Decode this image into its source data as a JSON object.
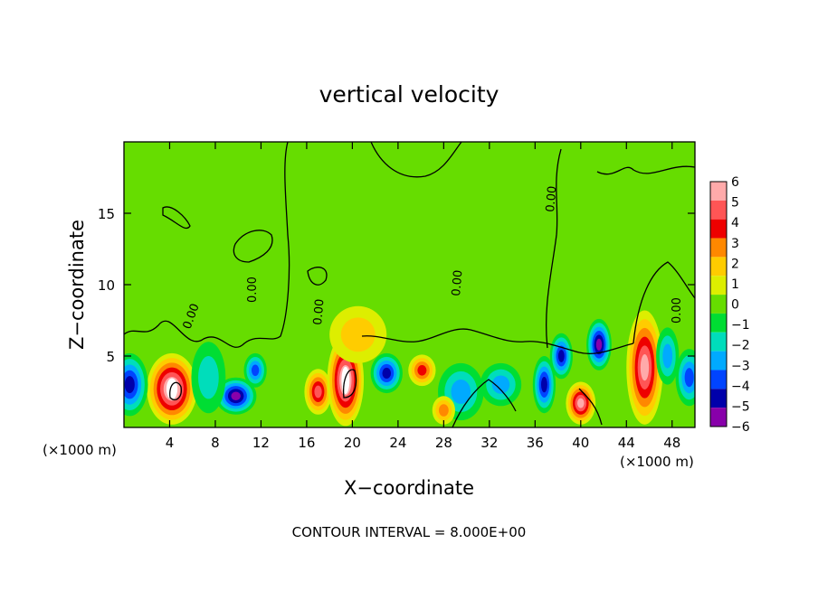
{
  "chart_data": {
    "type": "heatmap",
    "title": "vertical velocity",
    "xlabel": "X−coordinate",
    "ylabel": "Z−coordinate",
    "x_unit_left": "(×1000 m)",
    "x_unit_right": "(×1000 m)",
    "xlim": [
      0,
      50
    ],
    "ylim": [
      0,
      20
    ],
    "x_ticks": [
      4,
      8,
      12,
      16,
      20,
      24,
      28,
      32,
      36,
      40,
      44,
      48
    ],
    "y_ticks": [
      5,
      10,
      15
    ],
    "footer": "CONTOUR INTERVAL = 8.000E+00",
    "contour_label": "0.00",
    "colorbar": {
      "ticks": [
        6,
        5,
        4,
        3,
        2,
        1,
        0,
        -1,
        -2,
        -3,
        -4,
        -5,
        -6
      ],
      "colors": [
        "#ffaaaa",
        "#ff5555",
        "#ee0000",
        "#ff8800",
        "#ffcc00",
        "#ddee00",
        "#66dd00",
        "#00dd33",
        "#00ddbb",
        "#00aaff",
        "#0044ff",
        "#0000aa",
        "#8800aa"
      ]
    },
    "features": [
      {
        "x": 4.2,
        "z": 2.7,
        "value": 6.5,
        "rx": 2.2,
        "rz": 2.5
      },
      {
        "x": 9.8,
        "z": 2.2,
        "value": -5.5,
        "rx": 1.8,
        "rz": 1.3
      },
      {
        "x": 11.5,
        "z": 4.0,
        "value": -4.0,
        "rx": 1.0,
        "rz": 1.2
      },
      {
        "x": 7.4,
        "z": 3.5,
        "value": -2.0,
        "rx": 1.5,
        "rz": 2.5
      },
      {
        "x": 0.5,
        "z": 3.0,
        "value": -4.5,
        "rx": 1.6,
        "rz": 2.2
      },
      {
        "x": 17.0,
        "z": 2.5,
        "value": 5.0,
        "rx": 1.2,
        "rz": 1.6
      },
      {
        "x": 19.4,
        "z": 3.3,
        "value": 6.5,
        "rx": 1.6,
        "rz": 3.2
      },
      {
        "x": 23.0,
        "z": 3.8,
        "value": -5.0,
        "rx": 1.4,
        "rz": 1.4
      },
      {
        "x": 26.1,
        "z": 4.0,
        "value": 4.0,
        "rx": 1.2,
        "rz": 1.1
      },
      {
        "x": 29.5,
        "z": 2.5,
        "value": -3.0,
        "rx": 2.0,
        "rz": 2.0
      },
      {
        "x": 28.0,
        "z": 1.2,
        "value": 3.0,
        "rx": 1.0,
        "rz": 1.0
      },
      {
        "x": 36.8,
        "z": 3.0,
        "value": -5.0,
        "rx": 1.0,
        "rz": 2.0
      },
      {
        "x": 38.3,
        "z": 5.0,
        "value": -4.5,
        "rx": 1.0,
        "rz": 1.6
      },
      {
        "x": 40.0,
        "z": 1.7,
        "value": 6.0,
        "rx": 1.3,
        "rz": 1.5
      },
      {
        "x": 41.6,
        "z": 5.8,
        "value": -5.5,
        "rx": 1.1,
        "rz": 1.8
      },
      {
        "x": 45.6,
        "z": 4.2,
        "value": 6.0,
        "rx": 1.6,
        "rz": 4.0
      },
      {
        "x": 47.6,
        "z": 5.0,
        "value": -2.5,
        "rx": 1.0,
        "rz": 2.0
      },
      {
        "x": 49.5,
        "z": 3.5,
        "value": -3.5,
        "rx": 1.2,
        "rz": 2.0
      },
      {
        "x": 20.5,
        "z": 6.5,
        "value": 2.0,
        "rx": 2.5,
        "rz": 2.0
      },
      {
        "x": 33.0,
        "z": 3.0,
        "value": -2.5,
        "rx": 1.8,
        "rz": 1.5
      }
    ]
  }
}
